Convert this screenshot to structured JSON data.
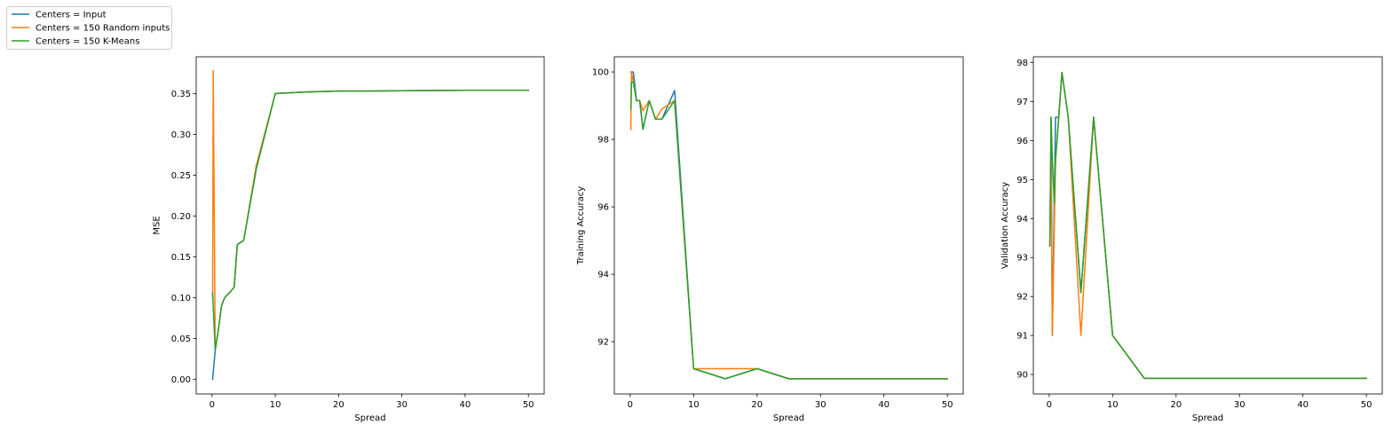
{
  "legend": {
    "placement": "top-left",
    "entries": [
      {
        "label": "Centers = Input",
        "color": "#1f77b4"
      },
      {
        "label": "Centers = 150 Random inputs",
        "color": "#ff7f0e"
      },
      {
        "label": "Centers = 150 K-Means",
        "color": "#2ca02c"
      }
    ]
  },
  "chart_data": [
    {
      "type": "line",
      "xlabel": "Spread",
      "ylabel": "MSE",
      "xlim": [
        -2.5,
        52.5
      ],
      "ylim": [
        -0.018,
        0.395
      ],
      "xticks": [
        0,
        10,
        20,
        30,
        40,
        50
      ],
      "yticks": [
        0.0,
        0.05,
        0.1,
        0.15,
        0.2,
        0.25,
        0.3,
        0.35
      ],
      "ytick_labels": [
        "0.00",
        "0.05",
        "0.10",
        "0.15",
        "0.20",
        "0.25",
        "0.30",
        "0.35"
      ],
      "grid": false,
      "series": [
        {
          "name": "Centers = Input",
          "color": "#1f77b4",
          "x": [
            0.1,
            0.5,
            1,
            1.5,
            2,
            3,
            3.5,
            4,
            5,
            7,
            10,
            15,
            20,
            25,
            30,
            35,
            40,
            45,
            50
          ],
          "y": [
            0.0,
            0.035,
            0.06,
            0.09,
            0.1,
            0.108,
            0.113,
            0.165,
            0.17,
            0.258,
            0.35,
            0.352,
            0.353,
            0.353,
            0.3535,
            0.3537,
            0.3539,
            0.354,
            0.354
          ]
        },
        {
          "name": "Centers = 150 Random inputs",
          "color": "#ff7f0e",
          "x": [
            0.1,
            0.2,
            0.5,
            1,
            1.5,
            2,
            3,
            3.5,
            4,
            5,
            7,
            10,
            15,
            20,
            25,
            30,
            35,
            40,
            45,
            50
          ],
          "y": [
            0.1,
            0.378,
            0.037,
            0.06,
            0.09,
            0.1,
            0.108,
            0.113,
            0.165,
            0.17,
            0.262,
            0.35,
            0.352,
            0.353,
            0.353,
            0.3535,
            0.3537,
            0.3539,
            0.354,
            0.354
          ]
        },
        {
          "name": "Centers = 150 K-Means",
          "color": "#2ca02c",
          "x": [
            0.1,
            0.5,
            1,
            1.5,
            2,
            3,
            3.5,
            4,
            5,
            7,
            10,
            15,
            20,
            25,
            30,
            35,
            40,
            45,
            50
          ],
          "y": [
            0.106,
            0.036,
            0.06,
            0.09,
            0.1,
            0.108,
            0.113,
            0.165,
            0.17,
            0.258,
            0.35,
            0.352,
            0.353,
            0.353,
            0.3535,
            0.3537,
            0.3539,
            0.354,
            0.354
          ]
        }
      ]
    },
    {
      "type": "line",
      "xlabel": "Spread",
      "ylabel": "Training Accuracy",
      "xlim": [
        -2.5,
        52.5
      ],
      "ylim": [
        90.45,
        100.45
      ],
      "xticks": [
        0,
        10,
        20,
        30,
        40,
        50
      ],
      "yticks": [
        92,
        94,
        96,
        98,
        100
      ],
      "ytick_labels": [
        "92",
        "94",
        "96",
        "98",
        "100"
      ],
      "grid": false,
      "series": [
        {
          "name": "Centers = Input",
          "color": "#1f77b4",
          "x": [
            0.1,
            0.2,
            0.5,
            1,
            1.5,
            2,
            3,
            4,
            5,
            7,
            10,
            15,
            20,
            25,
            30,
            35,
            40,
            45,
            50
          ],
          "y": [
            100,
            100,
            100,
            99.15,
            99.15,
            98.3,
            99.15,
            98.6,
            98.6,
            99.45,
            91.2,
            90.9,
            91.2,
            90.9,
            90.9,
            90.9,
            90.9,
            90.9,
            90.9
          ]
        },
        {
          "name": "Centers = 150 Random inputs",
          "color": "#ff7f0e",
          "x": [
            0.1,
            0.2,
            0.5,
            1,
            1.5,
            2,
            3,
            4,
            5,
            7,
            10,
            15,
            20,
            25,
            30,
            35,
            40,
            45,
            50
          ],
          "y": [
            98.3,
            100,
            99.7,
            99.15,
            99.15,
            98.85,
            99.15,
            98.6,
            98.9,
            99.15,
            91.2,
            91.2,
            91.2,
            90.9,
            90.9,
            90.9,
            90.9,
            90.9,
            90.9
          ]
        },
        {
          "name": "Centers = 150 K-Means",
          "color": "#2ca02c",
          "x": [
            0.1,
            0.2,
            0.5,
            1,
            1.5,
            2,
            3,
            4,
            5,
            7,
            10,
            15,
            20,
            25,
            30,
            35,
            40,
            45,
            50
          ],
          "y": [
            98.9,
            99.7,
            99.7,
            99.15,
            99.15,
            98.3,
            99.15,
            98.6,
            98.6,
            99.15,
            91.2,
            90.9,
            91.2,
            90.9,
            90.9,
            90.9,
            90.9,
            90.9,
            90.9
          ]
        }
      ]
    },
    {
      "type": "line",
      "xlabel": "Spread",
      "ylabel": "Validation Accuracy",
      "xlim": [
        -2.5,
        52.5
      ],
      "ylim": [
        89.5,
        98.15
      ],
      "xticks": [
        0,
        10,
        20,
        30,
        40,
        50
      ],
      "yticks": [
        90,
        91,
        92,
        93,
        94,
        95,
        96,
        97,
        98
      ],
      "ytick_labels": [
        "90",
        "91",
        "92",
        "93",
        "94",
        "95",
        "96",
        "97",
        "98"
      ],
      "grid": false,
      "series": [
        {
          "name": "Centers = Input",
          "color": "#1f77b4",
          "x": [
            0.1,
            0.3,
            0.5,
            1,
            1.5,
            2,
            3,
            5,
            7,
            10,
            15,
            20,
            25,
            30,
            35,
            40,
            45,
            50
          ],
          "y": [
            93.3,
            96.6,
            91.0,
            96.6,
            96.6,
            97.75,
            96.6,
            92.1,
            96.6,
            91.0,
            89.9,
            89.9,
            89.9,
            89.9,
            89.9,
            89.9,
            89.9,
            89.9
          ]
        },
        {
          "name": "Centers = 150 Random inputs",
          "color": "#ff7f0e",
          "x": [
            0.1,
            0.3,
            0.5,
            1,
            1.5,
            2,
            3,
            5,
            7,
            10,
            15,
            20,
            25,
            30,
            35,
            40,
            45,
            50
          ],
          "y": [
            93.3,
            95.5,
            91.0,
            95.5,
            96.6,
            97.75,
            96.6,
            91.0,
            96.6,
            91.0,
            89.9,
            89.9,
            89.9,
            89.9,
            89.9,
            89.9,
            89.9,
            89.9
          ]
        },
        {
          "name": "Centers = 150 K-Means",
          "color": "#2ca02c",
          "x": [
            0.1,
            0.3,
            0.5,
            0.8,
            1,
            1.5,
            2,
            3,
            5,
            7,
            10,
            15,
            20,
            25,
            30,
            35,
            40,
            45,
            50
          ],
          "y": [
            93.3,
            96.6,
            95.5,
            94.4,
            95.5,
            96.6,
            97.75,
            96.6,
            92.1,
            96.6,
            91.0,
            89.9,
            89.9,
            89.9,
            89.9,
            89.9,
            89.9,
            89.9,
            89.9
          ]
        }
      ]
    }
  ]
}
